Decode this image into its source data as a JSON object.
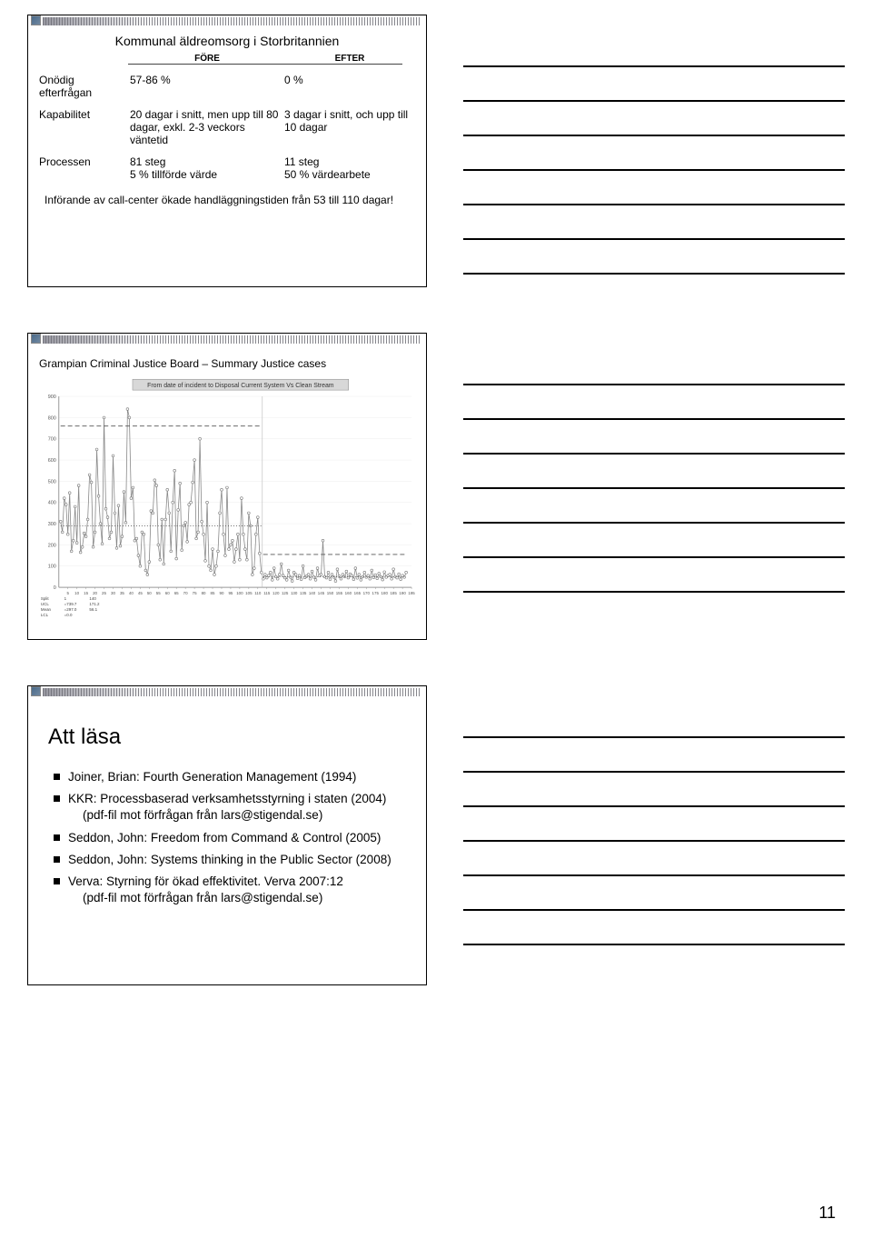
{
  "page_number": "11",
  "slide1": {
    "title": "Kommunal äldreomsorg i Storbritannien",
    "header_fore": "FÖRE",
    "header_efter": "EFTER",
    "rows": [
      {
        "label": "Onödig\nefterfrågan",
        "fore": "57-86 %",
        "efter": "0 %"
      },
      {
        "label": "Kapabilitet",
        "fore": "20 dagar i snitt, men upp till 80 dagar, exkl. 2-3 veckors väntetid",
        "efter": "3 dagar i snitt, och upp till 10 dagar"
      },
      {
        "label": "Processen",
        "fore": "81 steg\n5 % tillförde värde",
        "efter": "11 steg\n50 % värdearbete"
      }
    ],
    "note": "Införande av call-center ökade handläggningstiden från 53 till 110 dagar!"
  },
  "slide2": {
    "caption": "Grampian Criminal Justice Board – Summary Justice cases",
    "chart": {
      "type": "line-scatter",
      "chart_title": "From date of incident to Disposal Current System Vs Clean Stream",
      "title_bg": "#d8d8d8",
      "background_color": "#ffffff",
      "series_color": "#888888",
      "marker_stroke": "#777777",
      "marker_fill": "#ffffff",
      "grid_color": "#cccccc",
      "ucl_dash_color": "#555555",
      "mean_dot_color": "#555555",
      "ylim": [
        0,
        900
      ],
      "ytick_step": 100,
      "xlim": [
        0,
        195
      ],
      "xtick_step": 5,
      "segment1": {
        "range": [
          1,
          112
        ],
        "mean": 290,
        "ucl": 760,
        "values": [
          310,
          260,
          420,
          390,
          250,
          445,
          170,
          220,
          380,
          210,
          480,
          165,
          190,
          255,
          240,
          320,
          530,
          495,
          190,
          260,
          650,
          430,
          300,
          205,
          800,
          370,
          330,
          230,
          260,
          620,
          350,
          185,
          385,
          195,
          240,
          450,
          305,
          840,
          800,
          420,
          470,
          220,
          230,
          150,
          100,
          260,
          250,
          80,
          60,
          120,
          360,
          350,
          505,
          480,
          200,
          130,
          320,
          110,
          320,
          460,
          350,
          170,
          400,
          550,
          135,
          365,
          490,
          175,
          290,
          305,
          215,
          390,
          400,
          495,
          600,
          230,
          260,
          700,
          310,
          250,
          125,
          400,
          100,
          80,
          180,
          60,
          100,
          170,
          350,
          460,
          250,
          150,
          470,
          180,
          200,
          220,
          120,
          180,
          250,
          130,
          420,
          250,
          180,
          130,
          350,
          290,
          60,
          90,
          250,
          330,
          160,
          70
        ]
      },
      "segment2": {
        "range": [
          113,
          192
        ],
        "mean": 50,
        "ucl": 155,
        "values": [
          40,
          60,
          45,
          55,
          70,
          35,
          90,
          50,
          40,
          60,
          110,
          55,
          45,
          35,
          80,
          48,
          30,
          70,
          60,
          42,
          55,
          38,
          100,
          46,
          52,
          60,
          40,
          75,
          48,
          35,
          90,
          55,
          60,
          220,
          50,
          45,
          70,
          38,
          60,
          48,
          30,
          85,
          52,
          40,
          60,
          50,
          75,
          45,
          62,
          55,
          38,
          90,
          44,
          60,
          35,
          50,
          70,
          48,
          55,
          40,
          80,
          46,
          58,
          42,
          65,
          50,
          36,
          72,
          48,
          55,
          60,
          40,
          85,
          50,
          45,
          62,
          38,
          55,
          48,
          70
        ]
      },
      "stats_labels": {
        "split": "Split",
        "ucl": "UCL",
        "mean": "Mean",
        "lcl": "LCL"
      },
      "stats": {
        "split_1": "1",
        "split_2": "140",
        "ucl_1": "=739.7",
        "ucl_2": "171.2",
        "mean_1": "=297.0",
        "mean_2": "56.1",
        "lcl_1": "=0.0",
        "lcl_2": ""
      }
    }
  },
  "slide3": {
    "title": "Att läsa",
    "items": [
      {
        "text": "Joiner, Brian: Fourth Generation Management (1994)"
      },
      {
        "text": "KKR: Processbaserad verksamhetsstyrning i staten (2004)",
        "sub": "(pdf-fil mot förfrågan från lars@stigendal.se)"
      },
      {
        "text": "Seddon, John: Freedom from Command & Control (2005)"
      },
      {
        "text": "Seddon, John: Systems thinking in the Public Sector (2008)"
      },
      {
        "text": "Verva: Styrning för ökad effektivitet. Verva 2007:12",
        "sub": "(pdf-fil mot förfrågan från lars@stigendal.se)"
      }
    ]
  }
}
